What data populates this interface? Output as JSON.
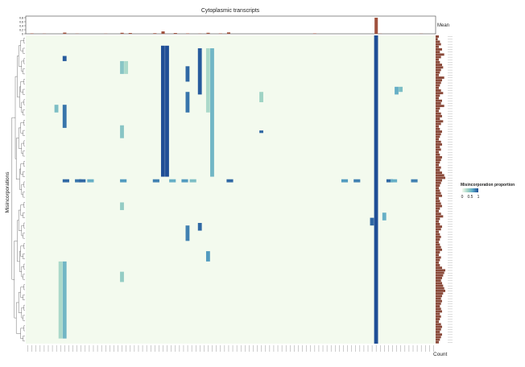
{
  "chart_data": {
    "type": "heatmap",
    "title": "Cytoplasmic transcripts",
    "xlabel": "",
    "ylabel": "Misincorporations",
    "top_annotation_label": "Mean",
    "top_annotation_ticks": [
      "0.8",
      "0.6",
      "0.4",
      "0.2",
      "0"
    ],
    "top_annotation_ylim": [
      0,
      0.8
    ],
    "right_annotation_label": "Count",
    "legend": {
      "title": "Misincorporation proportion",
      "ticks": [
        "0",
        "0.5",
        "1"
      ],
      "colors": [
        "#f3faee",
        "#9fd3c4",
        "#5aa8c6",
        "#1f4e96"
      ],
      "placement": "right"
    },
    "n_columns": 100,
    "n_rows": 120,
    "column_means": [
      0,
      0.02,
      0,
      0,
      0.01,
      0,
      0,
      0,
      0,
      0.06,
      0,
      0,
      0.01,
      0,
      0,
      0,
      0,
      0,
      0,
      0.01,
      0,
      0,
      0,
      0.05,
      0,
      0.04,
      0,
      0,
      0,
      0,
      0,
      0.03,
      0,
      0.12,
      0,
      0,
      0.04,
      0,
      0,
      0.02,
      0,
      0,
      0.01,
      0,
      0.05,
      0,
      0,
      0.02,
      0,
      0.07,
      0,
      0,
      0,
      0,
      0,
      0,
      0,
      0,
      0,
      0,
      0,
      0,
      0,
      0,
      0,
      0,
      0,
      0,
      0,
      0,
      0.02,
      0,
      0,
      0,
      0,
      0,
      0,
      0,
      0,
      0,
      0,
      0,
      0,
      0,
      0,
      0.8,
      0.01,
      0,
      0,
      0,
      0,
      0,
      0,
      0,
      0,
      0,
      0.01,
      0,
      0,
      0
    ],
    "column_blocks": [
      {
        "col": 33,
        "row_start": 4,
        "row_end": 55,
        "value": 1.0
      },
      {
        "col": 34,
        "row_start": 4,
        "row_end": 55,
        "value": 1.0
      },
      {
        "col": 85,
        "row_start": 0,
        "row_end": 120,
        "value": 1.0
      },
      {
        "col": 42,
        "row_start": 5,
        "row_end": 23,
        "value": 0.95
      },
      {
        "col": 39,
        "row_start": 12,
        "row_end": 18,
        "value": 0.9
      },
      {
        "col": 39,
        "row_start": 22,
        "row_end": 30,
        "value": 0.85
      },
      {
        "col": 45,
        "row_start": 5,
        "row_end": 55,
        "value": 0.55
      },
      {
        "col": 44,
        "row_start": 5,
        "row_end": 30,
        "value": 0.3
      },
      {
        "col": 9,
        "row_start": 8,
        "row_end": 10,
        "value": 0.95
      },
      {
        "col": 9,
        "row_start": 27,
        "row_end": 36,
        "value": 0.85
      },
      {
        "col": 9,
        "row_start": 88,
        "row_end": 118,
        "value": 0.55
      },
      {
        "col": 8,
        "row_start": 88,
        "row_end": 118,
        "value": 0.3
      },
      {
        "col": 7,
        "row_start": 27,
        "row_end": 30,
        "value": 0.5
      },
      {
        "col": 23,
        "row_start": 10,
        "row_end": 15,
        "value": 0.45
      },
      {
        "col": 23,
        "row_start": 35,
        "row_end": 40,
        "value": 0.45
      },
      {
        "col": 23,
        "row_start": 65,
        "row_end": 68,
        "value": 0.4
      },
      {
        "col": 23,
        "row_start": 92,
        "row_end": 96,
        "value": 0.4
      },
      {
        "col": 24,
        "row_start": 10,
        "row_end": 15,
        "value": 0.3
      },
      {
        "col": 42,
        "row_start": 73,
        "row_end": 76,
        "value": 0.9
      },
      {
        "col": 39,
        "row_start": 74,
        "row_end": 80,
        "value": 0.8
      },
      {
        "col": 44,
        "row_start": 84,
        "row_end": 88,
        "value": 0.7
      },
      {
        "col": 57,
        "row_start": 37,
        "row_end": 38,
        "value": 0.9
      },
      {
        "col": 57,
        "row_start": 22,
        "row_end": 26,
        "value": 0.35
      },
      {
        "col": 84,
        "row_start": 71,
        "row_end": 74,
        "value": 0.9
      },
      {
        "col": 87,
        "row_start": 69,
        "row_end": 72,
        "value": 0.6
      },
      {
        "col": 90,
        "row_start": 20,
        "row_end": 23,
        "value": 0.6
      },
      {
        "col": 91,
        "row_start": 20,
        "row_end": 22,
        "value": 0.5
      }
    ],
    "highlight_row": {
      "row": 56,
      "cells": [
        {
          "col": 9,
          "value": 0.9
        },
        {
          "col": 12,
          "value": 0.85
        },
        {
          "col": 13,
          "value": 0.9
        },
        {
          "col": 23,
          "value": 0.7
        },
        {
          "col": 31,
          "value": 0.8
        },
        {
          "col": 35,
          "value": 0.6
        },
        {
          "col": 38,
          "value": 0.7
        },
        {
          "col": 40,
          "value": 0.5
        },
        {
          "col": 49,
          "value": 0.9
        },
        {
          "col": 77,
          "value": 0.7
        },
        {
          "col": 80,
          "value": 0.8
        },
        {
          "col": 88,
          "value": 0.9
        },
        {
          "col": 94,
          "value": 0.8
        },
        {
          "col": 89,
          "value": 0.6
        },
        {
          "col": 15,
          "value": 0.6
        }
      ]
    },
    "row_counts": [
      3,
      2,
      4,
      5,
      3,
      6,
      4,
      8,
      5,
      3,
      4,
      6,
      7,
      5,
      4,
      3,
      8,
      6,
      5,
      4,
      3,
      5,
      7,
      4,
      3,
      6,
      5,
      8,
      4,
      3,
      5,
      6,
      4,
      7,
      5,
      3,
      4,
      6,
      5,
      4,
      3,
      5,
      6,
      4,
      5,
      3,
      4,
      6,
      5,
      4,
      3,
      5,
      4,
      6,
      8,
      9,
      6,
      5,
      4,
      3,
      4,
      5,
      6,
      3,
      4,
      5,
      6,
      4,
      3,
      5,
      7,
      4,
      3,
      4,
      6,
      5,
      3,
      4,
      5,
      4,
      3,
      4,
      5,
      6,
      4,
      3,
      5,
      4,
      3,
      4,
      6,
      9,
      8,
      7,
      6,
      5,
      6,
      7,
      8,
      9,
      7,
      6,
      5,
      6,
      5,
      4,
      5,
      6,
      4,
      5,
      4,
      3,
      5,
      6,
      5,
      4,
      6,
      5,
      4,
      3
    ]
  }
}
